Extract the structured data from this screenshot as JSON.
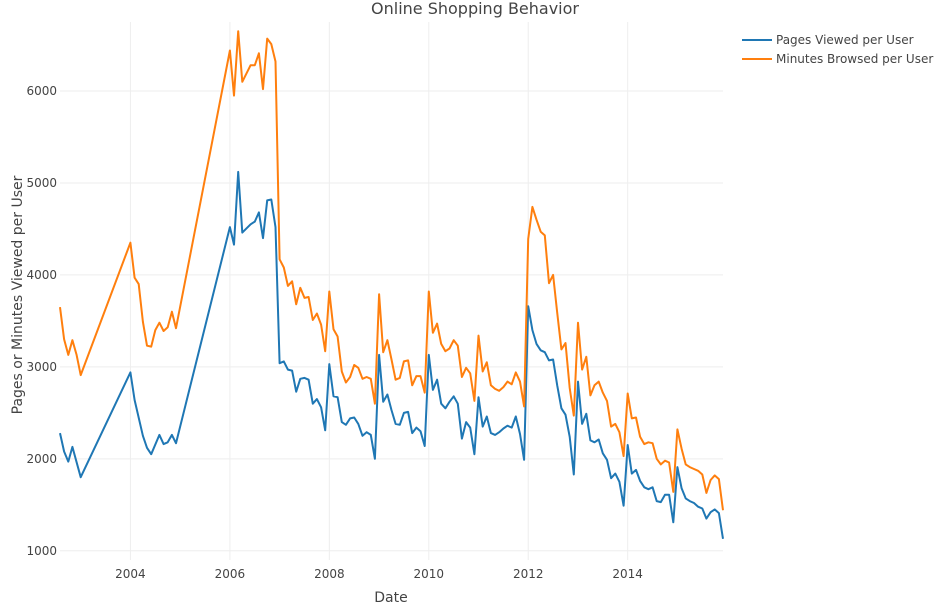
{
  "chart_data": {
    "type": "line",
    "title": "Online Shopping Behavior",
    "xlabel": "Date",
    "ylabel": "Pages or Minutes Viewed per User",
    "x_ticks": [
      "2004",
      "2006",
      "2008",
      "2010",
      "2012",
      "2014"
    ],
    "y_ticks": [
      "1000",
      "2000",
      "3000",
      "4000",
      "5000",
      "6000"
    ],
    "ylim": [
      900,
      6750
    ],
    "xlim": [
      "2002-08",
      "2015-12"
    ],
    "legend_position": "top-right",
    "grid": true,
    "series": [
      {
        "name": "Pages Viewed per User",
        "color": "#1f77b4",
        "points": [
          [
            "2002-08",
            2280
          ],
          [
            "2002-09",
            2080
          ],
          [
            "2002-10",
            1970
          ],
          [
            "2002-11",
            2130
          ],
          [
            "2003-01",
            1800
          ],
          [
            "2004-01",
            2940
          ],
          [
            "2004-02",
            2640
          ],
          [
            "2004-04",
            2250
          ],
          [
            "2004-05",
            2120
          ],
          [
            "2004-06",
            2050
          ],
          [
            "2004-08",
            2260
          ],
          [
            "2004-09",
            2160
          ],
          [
            "2004-10",
            2180
          ],
          [
            "2004-11",
            2260
          ],
          [
            "2004-12",
            2170
          ],
          [
            "2006-01",
            4520
          ],
          [
            "2006-02",
            4330
          ],
          [
            "2006-03",
            5120
          ],
          [
            "2006-04",
            4460
          ],
          [
            "2006-06",
            4550
          ],
          [
            "2006-07",
            4580
          ],
          [
            "2006-08",
            4680
          ],
          [
            "2006-09",
            4400
          ],
          [
            "2006-10",
            4810
          ],
          [
            "2006-11",
            4820
          ],
          [
            "2006-12",
            4520
          ],
          [
            "2007-01",
            3040
          ],
          [
            "2007-02",
            3060
          ],
          [
            "2007-03",
            2970
          ],
          [
            "2007-04",
            2960
          ],
          [
            "2007-05",
            2730
          ],
          [
            "2007-06",
            2870
          ],
          [
            "2007-07",
            2880
          ],
          [
            "2007-08",
            2860
          ],
          [
            "2007-09",
            2600
          ],
          [
            "2007-10",
            2650
          ],
          [
            "2007-11",
            2560
          ],
          [
            "2007-12",
            2310
          ],
          [
            "2008-01",
            3030
          ],
          [
            "2008-02",
            2680
          ],
          [
            "2008-03",
            2670
          ],
          [
            "2008-04",
            2400
          ],
          [
            "2008-05",
            2370
          ],
          [
            "2008-06",
            2440
          ],
          [
            "2008-07",
            2450
          ],
          [
            "2008-08",
            2380
          ],
          [
            "2008-09",
            2250
          ],
          [
            "2008-10",
            2290
          ],
          [
            "2008-11",
            2260
          ],
          [
            "2008-12",
            2000
          ],
          [
            "2009-01",
            3130
          ],
          [
            "2009-02",
            2620
          ],
          [
            "2009-03",
            2700
          ],
          [
            "2009-04",
            2530
          ],
          [
            "2009-05",
            2380
          ],
          [
            "2009-06",
            2370
          ],
          [
            "2009-07",
            2500
          ],
          [
            "2009-08",
            2510
          ],
          [
            "2009-09",
            2280
          ],
          [
            "2009-10",
            2340
          ],
          [
            "2009-11",
            2300
          ],
          [
            "2009-12",
            2140
          ],
          [
            "2010-01",
            3130
          ],
          [
            "2010-02",
            2750
          ],
          [
            "2010-03",
            2860
          ],
          [
            "2010-04",
            2600
          ],
          [
            "2010-05",
            2550
          ],
          [
            "2010-06",
            2620
          ],
          [
            "2010-07",
            2680
          ],
          [
            "2010-08",
            2600
          ],
          [
            "2010-09",
            2220
          ],
          [
            "2010-10",
            2400
          ],
          [
            "2010-11",
            2340
          ],
          [
            "2010-12",
            2050
          ],
          [
            "2011-01",
            2670
          ],
          [
            "2011-02",
            2350
          ],
          [
            "2011-03",
            2460
          ],
          [
            "2011-04",
            2280
          ],
          [
            "2011-05",
            2260
          ],
          [
            "2011-06",
            2290
          ],
          [
            "2011-07",
            2330
          ],
          [
            "2011-08",
            2360
          ],
          [
            "2011-09",
            2340
          ],
          [
            "2011-10",
            2460
          ],
          [
            "2011-11",
            2270
          ],
          [
            "2011-12",
            1990
          ],
          [
            "2012-01",
            3660
          ],
          [
            "2012-02",
            3400
          ],
          [
            "2012-03",
            3250
          ],
          [
            "2012-04",
            3180
          ],
          [
            "2012-05",
            3160
          ],
          [
            "2012-06",
            3070
          ],
          [
            "2012-07",
            3080
          ],
          [
            "2012-08",
            2800
          ],
          [
            "2012-09",
            2550
          ],
          [
            "2012-10",
            2480
          ],
          [
            "2012-11",
            2240
          ],
          [
            "2012-12",
            1830
          ],
          [
            "2013-01",
            2840
          ],
          [
            "2013-02",
            2380
          ],
          [
            "2013-03",
            2490
          ],
          [
            "2013-04",
            2200
          ],
          [
            "2013-05",
            2180
          ],
          [
            "2013-06",
            2210
          ],
          [
            "2013-07",
            2060
          ],
          [
            "2013-08",
            1990
          ],
          [
            "2013-09",
            1790
          ],
          [
            "2013-10",
            1840
          ],
          [
            "2013-11",
            1750
          ],
          [
            "2013-12",
            1490
          ],
          [
            "2014-01",
            2150
          ],
          [
            "2014-02",
            1840
          ],
          [
            "2014-03",
            1880
          ],
          [
            "2014-04",
            1760
          ],
          [
            "2014-05",
            1690
          ],
          [
            "2014-06",
            1670
          ],
          [
            "2014-07",
            1690
          ],
          [
            "2014-08",
            1540
          ],
          [
            "2014-09",
            1530
          ],
          [
            "2014-10",
            1610
          ],
          [
            "2014-11",
            1610
          ],
          [
            "2014-12",
            1310
          ],
          [
            "2015-01",
            1910
          ],
          [
            "2015-02",
            1680
          ],
          [
            "2015-03",
            1570
          ],
          [
            "2015-04",
            1540
          ],
          [
            "2015-05",
            1520
          ],
          [
            "2015-06",
            1480
          ],
          [
            "2015-07",
            1460
          ],
          [
            "2015-08",
            1350
          ],
          [
            "2015-09",
            1420
          ],
          [
            "2015-10",
            1450
          ],
          [
            "2015-11",
            1410
          ],
          [
            "2015-12",
            1130
          ]
        ]
      },
      {
        "name": "Minutes Browsed per User",
        "color": "#ff7f0e",
        "points": [
          [
            "2002-08",
            3650
          ],
          [
            "2002-09",
            3300
          ],
          [
            "2002-10",
            3130
          ],
          [
            "2002-11",
            3290
          ],
          [
            "2002-12",
            3130
          ],
          [
            "2003-01",
            2910
          ],
          [
            "2004-01",
            4350
          ],
          [
            "2004-02",
            3970
          ],
          [
            "2004-03",
            3900
          ],
          [
            "2004-04",
            3490
          ],
          [
            "2004-05",
            3230
          ],
          [
            "2004-06",
            3220
          ],
          [
            "2004-07",
            3400
          ],
          [
            "2004-08",
            3480
          ],
          [
            "2004-09",
            3390
          ],
          [
            "2004-10",
            3430
          ],
          [
            "2004-11",
            3600
          ],
          [
            "2004-12",
            3420
          ],
          [
            "2006-01",
            6440
          ],
          [
            "2006-02",
            5950
          ],
          [
            "2006-03",
            6650
          ],
          [
            "2006-04",
            6100
          ],
          [
            "2006-06",
            6280
          ],
          [
            "2006-07",
            6280
          ],
          [
            "2006-08",
            6410
          ],
          [
            "2006-09",
            6020
          ],
          [
            "2006-10",
            6570
          ],
          [
            "2006-11",
            6510
          ],
          [
            "2006-12",
            6320
          ],
          [
            "2007-01",
            4170
          ],
          [
            "2007-02",
            4080
          ],
          [
            "2007-03",
            3880
          ],
          [
            "2007-04",
            3930
          ],
          [
            "2007-05",
            3680
          ],
          [
            "2007-06",
            3860
          ],
          [
            "2007-07",
            3750
          ],
          [
            "2007-08",
            3760
          ],
          [
            "2007-09",
            3510
          ],
          [
            "2007-10",
            3580
          ],
          [
            "2007-11",
            3460
          ],
          [
            "2007-12",
            3170
          ],
          [
            "2008-01",
            3820
          ],
          [
            "2008-02",
            3410
          ],
          [
            "2008-03",
            3330
          ],
          [
            "2008-04",
            2950
          ],
          [
            "2008-05",
            2830
          ],
          [
            "2008-06",
            2890
          ],
          [
            "2008-07",
            3020
          ],
          [
            "2008-08",
            2990
          ],
          [
            "2008-09",
            2870
          ],
          [
            "2008-10",
            2890
          ],
          [
            "2008-11",
            2870
          ],
          [
            "2008-12",
            2600
          ],
          [
            "2009-01",
            3790
          ],
          [
            "2009-02",
            3160
          ],
          [
            "2009-03",
            3290
          ],
          [
            "2009-04",
            3080
          ],
          [
            "2009-05",
            2860
          ],
          [
            "2009-06",
            2880
          ],
          [
            "2009-07",
            3060
          ],
          [
            "2009-08",
            3070
          ],
          [
            "2009-09",
            2800
          ],
          [
            "2009-10",
            2900
          ],
          [
            "2009-11",
            2900
          ],
          [
            "2009-12",
            2720
          ],
          [
            "2010-01",
            3820
          ],
          [
            "2010-02",
            3370
          ],
          [
            "2010-03",
            3470
          ],
          [
            "2010-04",
            3250
          ],
          [
            "2010-05",
            3170
          ],
          [
            "2010-06",
            3200
          ],
          [
            "2010-07",
            3290
          ],
          [
            "2010-08",
            3230
          ],
          [
            "2010-09",
            2890
          ],
          [
            "2010-10",
            2990
          ],
          [
            "2010-11",
            2930
          ],
          [
            "2010-12",
            2630
          ],
          [
            "2011-01",
            3340
          ],
          [
            "2011-02",
            2950
          ],
          [
            "2011-03",
            3050
          ],
          [
            "2011-04",
            2800
          ],
          [
            "2011-05",
            2760
          ],
          [
            "2011-06",
            2740
          ],
          [
            "2011-07",
            2780
          ],
          [
            "2011-08",
            2840
          ],
          [
            "2011-09",
            2810
          ],
          [
            "2011-10",
            2940
          ],
          [
            "2011-11",
            2840
          ],
          [
            "2011-12",
            2570
          ],
          [
            "2012-01",
            4390
          ],
          [
            "2012-02",
            4740
          ],
          [
            "2012-03",
            4600
          ],
          [
            "2012-04",
            4470
          ],
          [
            "2012-05",
            4430
          ],
          [
            "2012-06",
            3910
          ],
          [
            "2012-07",
            4000
          ],
          [
            "2012-08",
            3590
          ],
          [
            "2012-09",
            3190
          ],
          [
            "2012-10",
            3260
          ],
          [
            "2012-11",
            2770
          ],
          [
            "2012-12",
            2470
          ],
          [
            "2013-01",
            3480
          ],
          [
            "2013-02",
            2970
          ],
          [
            "2013-03",
            3110
          ],
          [
            "2013-04",
            2690
          ],
          [
            "2013-05",
            2800
          ],
          [
            "2013-06",
            2840
          ],
          [
            "2013-07",
            2720
          ],
          [
            "2013-08",
            2630
          ],
          [
            "2013-09",
            2350
          ],
          [
            "2013-10",
            2380
          ],
          [
            "2013-11",
            2290
          ],
          [
            "2013-12",
            2030
          ],
          [
            "2014-01",
            2710
          ],
          [
            "2014-02",
            2440
          ],
          [
            "2014-03",
            2450
          ],
          [
            "2014-04",
            2240
          ],
          [
            "2014-05",
            2160
          ],
          [
            "2014-06",
            2180
          ],
          [
            "2014-07",
            2170
          ],
          [
            "2014-08",
            2000
          ],
          [
            "2014-09",
            1940
          ],
          [
            "2014-10",
            1980
          ],
          [
            "2014-11",
            1960
          ],
          [
            "2014-12",
            1640
          ],
          [
            "2015-01",
            2320
          ],
          [
            "2015-02",
            2110
          ],
          [
            "2015-03",
            1940
          ],
          [
            "2015-04",
            1910
          ],
          [
            "2015-05",
            1890
          ],
          [
            "2015-06",
            1870
          ],
          [
            "2015-07",
            1830
          ],
          [
            "2015-08",
            1630
          ],
          [
            "2015-09",
            1770
          ],
          [
            "2015-10",
            1820
          ],
          [
            "2015-11",
            1780
          ],
          [
            "2015-12",
            1440
          ]
        ]
      }
    ]
  }
}
